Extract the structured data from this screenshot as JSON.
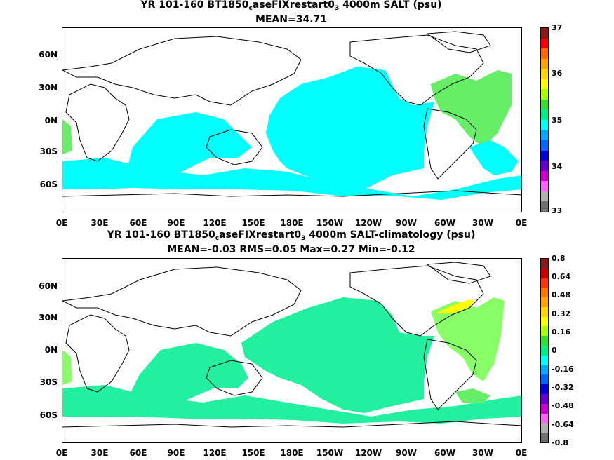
{
  "panel1": {
    "title_pre": "YR 101-160 BT1850",
    "title_sub1": "c",
    "title_mid": "aseFIXrestart0",
    "title_sub2": "3",
    "title_post": " 4000m SALT (psu)",
    "subtitle": "MEAN=34.71",
    "colorbar_labels": [
      "37",
      "36",
      "35",
      "34",
      "33"
    ],
    "colors": [
      "#8b1a1a",
      "#ff0000",
      "#ff6a00",
      "#ffa500",
      "#ffd700",
      "#ffff00",
      "#aaff00",
      "#33dd33",
      "#00ee88",
      "#00ffff",
      "#00aaff",
      "#0066ff",
      "#0000dd",
      "#6600cc",
      "#cc00cc",
      "#ff66ff",
      "#b0b0b0",
      "#707070"
    ]
  },
  "panel2": {
    "title_pre": "YR 101-160 BT1850",
    "title_sub1": "c",
    "title_mid": "aseFIXrestart0",
    "title_sub2": "3",
    "title_post": " 4000m SALT-climatology (psu)",
    "subtitle": "MEAN=-0.03   RMS=0.05   Max=0.27   Min=-0.12",
    "colorbar_labels": [
      "0.8",
      "0.64",
      "0.48",
      "0.32",
      "0.16",
      "0",
      "-0.16",
      "-0.32",
      "-0.48",
      "-0.64",
      "-0.8"
    ],
    "colors": [
      "#8b1a1a",
      "#cc0000",
      "#ff3300",
      "#ff7700",
      "#ffa500",
      "#ffd700",
      "#ffff00",
      "#aaff00",
      "#33dd33",
      "#00ee88",
      "#00ffff",
      "#00aaff",
      "#0066ff",
      "#0000dd",
      "#6600cc",
      "#cc00cc",
      "#ff66ff",
      "#b0b0b0",
      "#707070"
    ]
  },
  "y_ticks": [
    "60N",
    "30N",
    "0N",
    "30S",
    "60S"
  ],
  "x_ticks": [
    "0E",
    "30E",
    "60E",
    "90E",
    "120E",
    "150E",
    "180E",
    "150W",
    "120W",
    "90W",
    "60W",
    "30W",
    "0E"
  ],
  "field_colors": {
    "cyan": "#00ffff",
    "green_light": "#88ff66",
    "green_medium": "#66ee66",
    "aqua_green": "#22f0a0",
    "yellow": "#ffff00",
    "pale_green": "#aaff77"
  }
}
